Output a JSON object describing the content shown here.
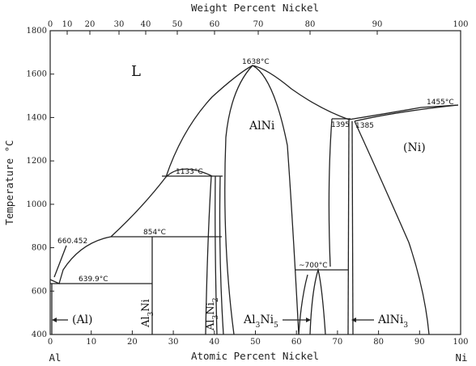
{
  "title_top": "Weight Percent Nickel",
  "xlabel": "Atomic Percent Nickel",
  "ylabel": "Temperature °C",
  "left_element": "Al",
  "right_element": "Ni",
  "y_ticks": [
    "400",
    "600",
    "800",
    "1000",
    "1200",
    "1400",
    "1600",
    "1800"
  ],
  "x_bottom_ticks": [
    "0",
    "10",
    "20",
    "30",
    "40",
    "50",
    "60",
    "70",
    "80",
    "90",
    "100"
  ],
  "x_top_ticks": [
    "0",
    "10",
    "20",
    "30",
    "40",
    "50",
    "60",
    "70",
    "80",
    "90",
    "100"
  ],
  "phases": {
    "liquid": "L",
    "alni": "AlNi",
    "ni": "(Ni)",
    "al": "(Al)",
    "al3ni": "Al3Ni",
    "al3ni2": "Al3Ni2",
    "al3ni5": "Al3Ni5",
    "alni3": "AlNi3"
  },
  "temps": {
    "t1638": "1638°C",
    "t1455": "1455°C",
    "t1395a": "1395",
    "t1385": "1385",
    "t1133": "1133°C",
    "t854": "854°C",
    "t660": "660.452",
    "t639": "639.9°C",
    "t700": "~700°C"
  }
}
